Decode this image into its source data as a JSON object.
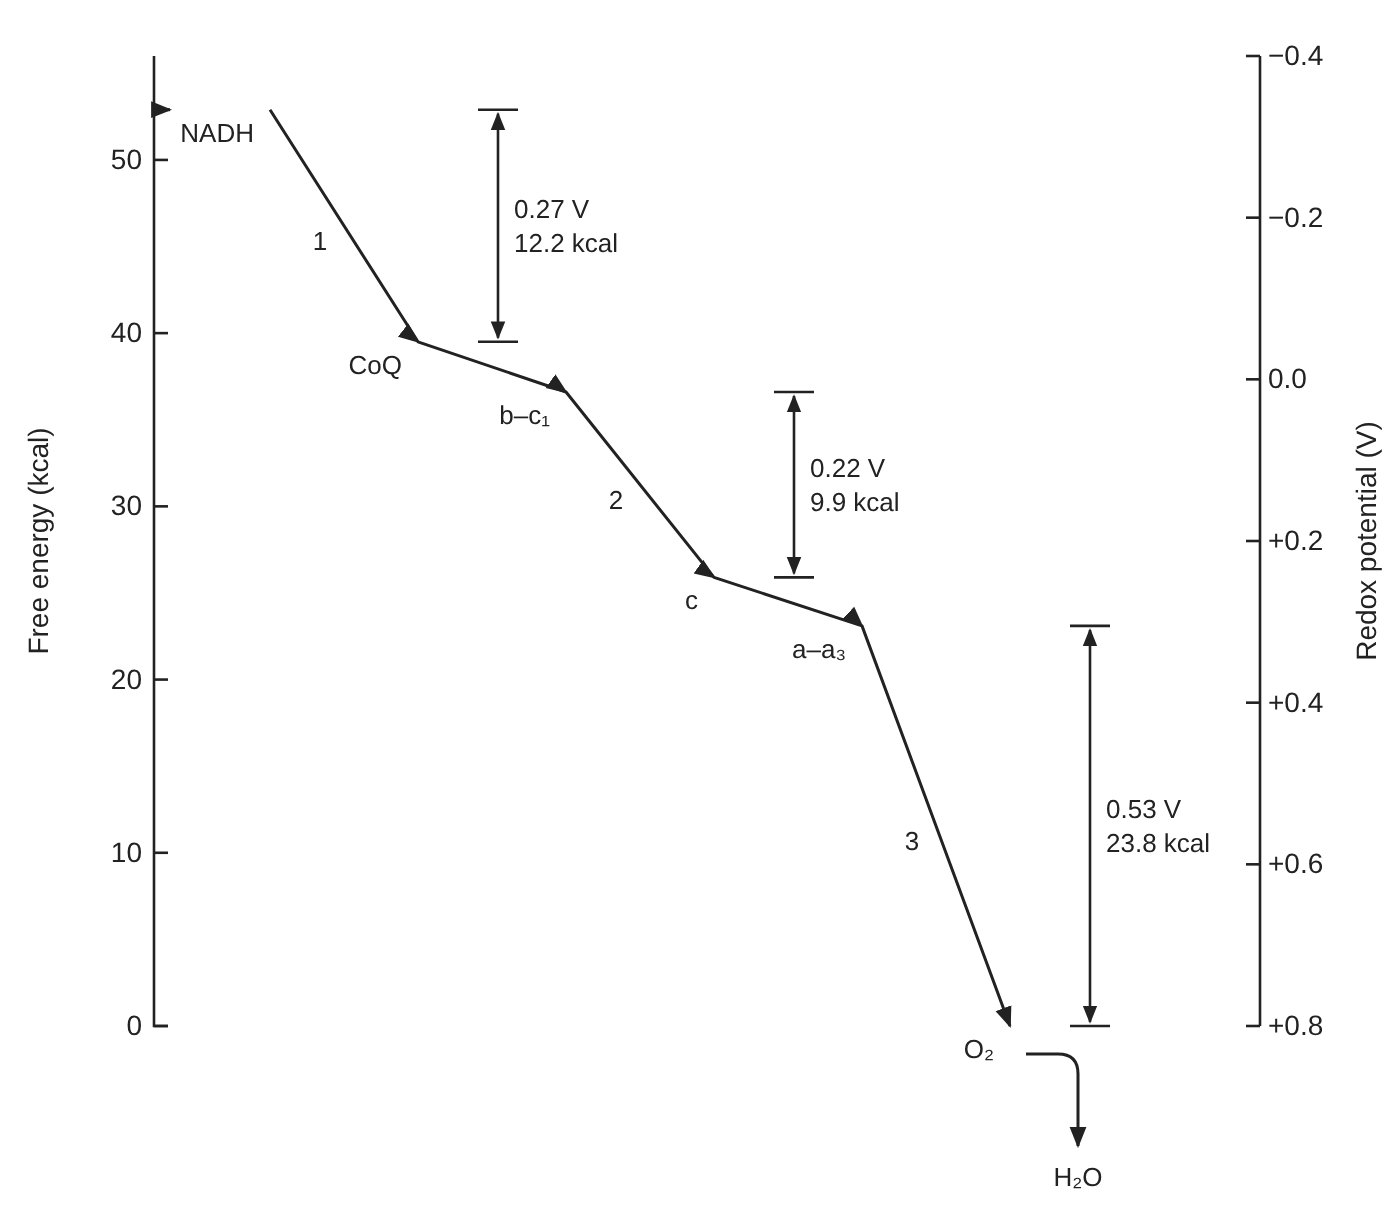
{
  "chart_data": {
    "type": "line",
    "marker": "none",
    "line_style": "solid",
    "ylabel": "Free energy (kcal)",
    "y2label": "Redox potential (V)",
    "categories": [
      null,
      null,
      null,
      null,
      null,
      null
    ],
    "series": [
      {
        "color": "#222222",
        "values": [
          52.9,
          39.5,
          36.6,
          25.9,
          23.1,
          0
        ]
      }
    ],
    "ylim": [
      0,
      56
    ],
    "yticks": [
      0,
      10,
      20,
      30,
      40,
      50
    ],
    "y2lim": [
      0.8,
      -0.4
    ],
    "y2ticks": [
      {
        "value": -0.4,
        "label": "−0.4"
      },
      {
        "value": -0.2,
        "label": "−0.2"
      },
      {
        "value": 0,
        "label": "0.0"
      },
      {
        "value": 0.2,
        "label": "+0.2"
      },
      {
        "value": 0.4,
        "label": "+0.4"
      },
      {
        "value": 0.6,
        "label": "+0.6"
      },
      {
        "value": 0.8,
        "label": "+0.8"
      }
    ],
    "annotations": [
      "NADH",
      "CoQ",
      "b–c₁",
      "c",
      "a–a₃",
      "O₂",
      "0.27 V\n12.2 kcal",
      "0.22 V\n9.9 kcal",
      "0.53 V\n23.8 kcal",
      "1",
      "2",
      "3",
      "H₂O"
    ],
    "grid": false
  }
}
